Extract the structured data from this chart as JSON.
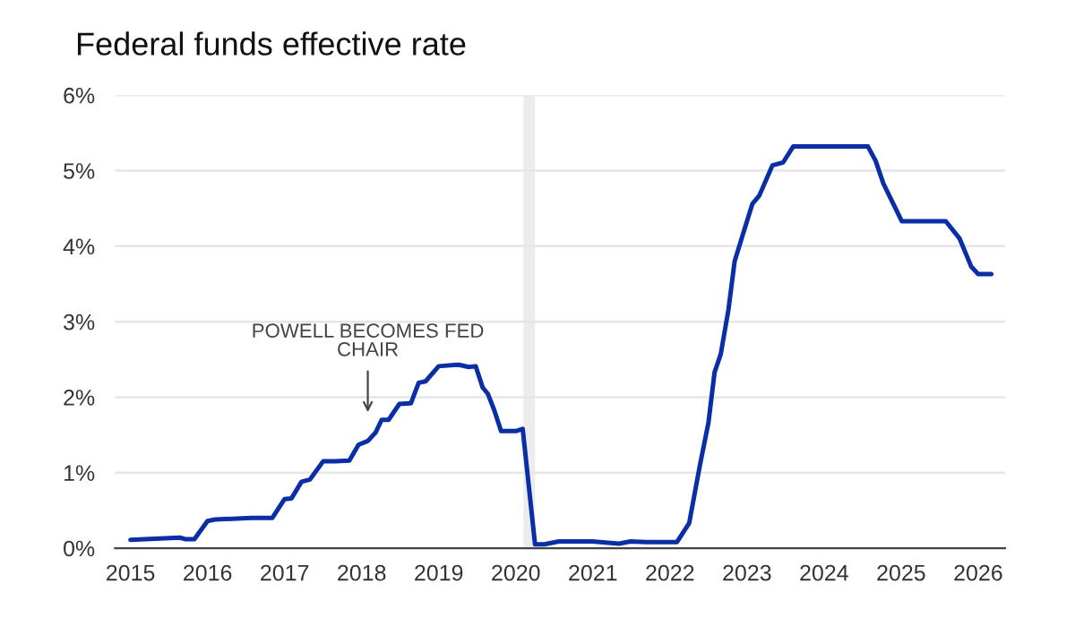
{
  "chart_data": {
    "type": "line",
    "title": "Federal funds effective rate",
    "series": [
      {
        "color": "#0a2ea6",
        "x": [
          2015.0,
          2015.64,
          2015.71,
          2015.83,
          2016.0,
          2016.1,
          2016.57,
          2016.84,
          2017.0,
          2017.09,
          2017.22,
          2017.33,
          2017.5,
          2017.65,
          2017.84,
          2017.96,
          2018.08,
          2018.18,
          2018.26,
          2018.35,
          2018.49,
          2018.64,
          2018.74,
          2018.83,
          2019.0,
          2019.26,
          2019.39,
          2019.48,
          2019.57,
          2019.64,
          2019.72,
          2019.81,
          2020.0,
          2020.09,
          2020.25,
          2020.37,
          2020.56,
          2020.99,
          2021.34,
          2021.49,
          2021.69,
          2022.09,
          2022.25,
          2022.39,
          2022.5,
          2022.58,
          2022.66,
          2022.76,
          2022.84,
          2022.93,
          2023.07,
          2023.16,
          2023.33,
          2023.47,
          2023.6,
          2024.57,
          2024.67,
          2024.77,
          2025.01,
          2025.58,
          2025.76,
          2025.91,
          2026.0,
          2026.17
        ],
        "values": [
          0.11,
          0.14,
          0.12,
          0.12,
          0.36,
          0.38,
          0.4,
          0.4,
          0.65,
          0.66,
          0.88,
          0.91,
          1.15,
          1.15,
          1.16,
          1.37,
          1.42,
          1.53,
          1.7,
          1.7,
          1.91,
          1.92,
          2.19,
          2.21,
          2.41,
          2.43,
          2.4,
          2.41,
          2.13,
          2.04,
          1.83,
          1.55,
          1.55,
          1.58,
          0.05,
          0.05,
          0.09,
          0.09,
          0.06,
          0.09,
          0.08,
          0.08,
          0.33,
          1.1,
          1.66,
          2.33,
          2.57,
          3.16,
          3.8,
          4.1,
          4.56,
          4.67,
          5.07,
          5.11,
          5.32,
          5.32,
          5.13,
          4.83,
          4.33,
          4.33,
          4.1,
          3.73,
          3.63,
          3.63
        ]
      }
    ],
    "xlim": [
      2014.8,
      2026.35
    ],
    "xticks": [
      2015,
      2016,
      2017,
      2018,
      2019,
      2020,
      2021,
      2022,
      2023,
      2024,
      2025,
      2026
    ],
    "ylim": [
      0,
      6
    ],
    "yticks": [
      {
        "value": 0,
        "label": "0%"
      },
      {
        "value": 1,
        "label": "1%"
      },
      {
        "value": 2,
        "label": "2%"
      },
      {
        "value": 3,
        "label": "3%"
      },
      {
        "value": 4,
        "label": "4%"
      },
      {
        "value": 5,
        "label": "5%"
      },
      {
        "value": 6,
        "label": "6%"
      }
    ],
    "grid": "y",
    "legend": false,
    "marker": "none",
    "line_style": "solid",
    "bands": [
      {
        "axis": "x",
        "from": 2020.1,
        "to": 2020.25,
        "color": "#ececec"
      }
    ],
    "annotations": [
      "POWELL BECOMES FED\nCHAIR"
    ]
  }
}
